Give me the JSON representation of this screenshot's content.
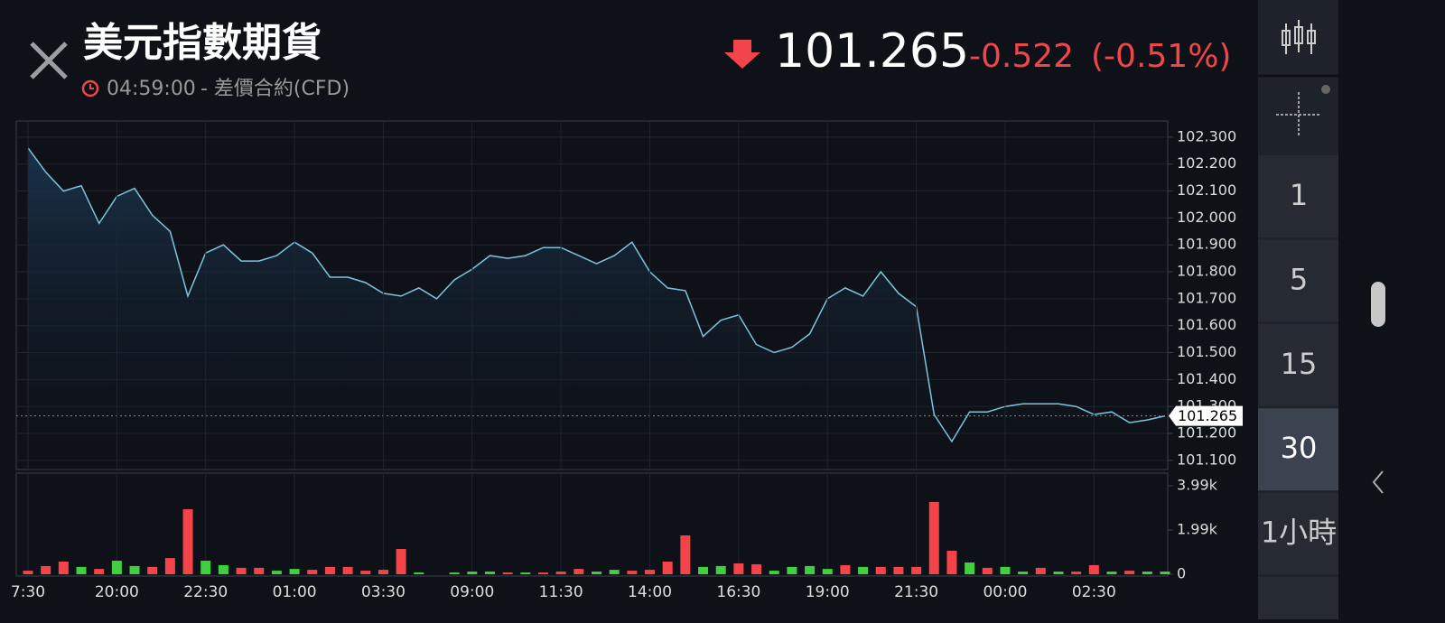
{
  "header": {
    "title": "美元指數期貨",
    "time": "04:59:00",
    "subtitle": "- 差價合約(CFD)",
    "change": -0.522,
    "change_pct": "(-0.51%)"
  },
  "sidebar": {
    "intervals": [
      "1",
      "5",
      "15",
      "30",
      "1小時"
    ]
  },
  "chart_data": [
    {
      "type": "line",
      "color": "#7fc4dd",
      "last": 101.265,
      "values": [
        102.26,
        102.17,
        102.1,
        102.12,
        101.98,
        102.08,
        102.11,
        102.01,
        101.95,
        101.71,
        101.87,
        101.9,
        101.84,
        101.84,
        101.86,
        101.91,
        101.87,
        101.78,
        101.78,
        101.76,
        101.72,
        101.71,
        101.74,
        101.7,
        101.77,
        101.81,
        101.86,
        101.85,
        101.86,
        101.89,
        101.89,
        101.86,
        101.83,
        101.86,
        101.91,
        101.8,
        101.74,
        101.73,
        101.56,
        101.62,
        101.64,
        101.53,
        101.5,
        101.52,
        101.57,
        101.7,
        101.74,
        101.71,
        101.8,
        101.72,
        101.67,
        101.27,
        101.17,
        101.28,
        101.28,
        101.3,
        101.31,
        101.31,
        101.31,
        101.3,
        101.27,
        101.28,
        101.24,
        101.25,
        101.265
      ],
      "ylim": [
        101.066,
        102.36
      ],
      "yticks": [
        {
          "value": 101.1,
          "label": "101.100"
        },
        {
          "value": 101.2,
          "label": "101.200"
        },
        {
          "value": 101.3,
          "label": "101.300"
        },
        {
          "value": 101.4,
          "label": "101.400"
        },
        {
          "value": 101.5,
          "label": "101.500"
        },
        {
          "value": 101.6,
          "label": "101.600"
        },
        {
          "value": 101.7,
          "label": "101.700"
        },
        {
          "value": 101.8,
          "label": "101.800"
        },
        {
          "value": 101.9,
          "label": "101.900"
        },
        {
          "value": 102.0,
          "label": "102.000"
        },
        {
          "value": 102.1,
          "label": "102.100"
        },
        {
          "value": 102.2,
          "label": "102.200"
        },
        {
          "value": 102.3,
          "label": "102.300"
        }
      ],
      "grid": true
    },
    {
      "type": "bar",
      "categories": [
        "7:30",
        null,
        null,
        null,
        null,
        "20:00",
        null,
        null,
        null,
        null,
        "22:30",
        null,
        null,
        null,
        null,
        "01:00",
        null,
        null,
        null,
        null,
        "03:30",
        null,
        null,
        null,
        null,
        "09:00",
        null,
        null,
        null,
        null,
        "11:30",
        null,
        null,
        null,
        null,
        "14:00",
        null,
        null,
        null,
        null,
        "16:30",
        null,
        null,
        null,
        null,
        "19:00",
        null,
        null,
        null,
        null,
        "21:30",
        null,
        null,
        null,
        null,
        "00:00",
        null,
        null,
        null,
        null,
        "02:30",
        null,
        null,
        null,
        null
      ],
      "values": [
        160,
        370,
        570,
        330,
        240,
        610,
        370,
        330,
        730,
        2930,
        610,
        410,
        290,
        290,
        160,
        240,
        200,
        330,
        330,
        160,
        200,
        1140,
        80,
        0,
        80,
        120,
        120,
        80,
        80,
        80,
        120,
        240,
        120,
        200,
        160,
        200,
        570,
        1750,
        330,
        370,
        490,
        450,
        160,
        330,
        370,
        240,
        410,
        330,
        330,
        330,
        330,
        3260,
        1060,
        530,
        290,
        330,
        120,
        290,
        120,
        120,
        410,
        120,
        160,
        120,
        120
      ],
      "colors": [
        "#f5434a",
        "#f5434a",
        "#f5434a",
        "#3fcf3f",
        "#f5434a",
        "#3fcf3f",
        "#3fcf3f",
        "#f5434a",
        "#f5434a",
        "#f5434a",
        "#3fcf3f",
        "#3fcf3f",
        "#f5434a",
        "#f5434a",
        "#3fcf3f",
        "#3fcf3f",
        "#f5434a",
        "#f5434a",
        "#f5434a",
        "#f5434a",
        "#f5434a",
        "#f5434a",
        "#3fcf3f",
        "#3fcf3f",
        "#3fcf3f",
        "#3fcf3f",
        "#3fcf3f",
        "#f5434a",
        "#3fcf3f",
        "#f5434a",
        "#f5434a",
        "#f5434a",
        "#3fcf3f",
        "#3fcf3f",
        "#f5434a",
        "#f5434a",
        "#f5434a",
        "#f5434a",
        "#3fcf3f",
        "#3fcf3f",
        "#f5434a",
        "#f5434a",
        "#3fcf3f",
        "#3fcf3f",
        "#3fcf3f",
        "#3fcf3f",
        "#f5434a",
        "#3fcf3f",
        "#f5434a",
        "#f5434a",
        "#f5434a",
        "#f5434a",
        "#f5434a",
        "#3fcf3f",
        "#f5434a",
        "#3fcf3f",
        "#3fcf3f",
        "#f5434a",
        "#3fcf3f",
        "#f5434a",
        "#f5434a",
        "#3fcf3f",
        "#f5434a",
        "#3fcf3f",
        "#3fcf3f"
      ],
      "ylim": [
        0,
        3990
      ],
      "yticks": [
        0,
        {
          "value": 1990,
          "label": "1.99k"
        },
        {
          "value": 3990,
          "label": "3.99k"
        }
      ]
    }
  ]
}
